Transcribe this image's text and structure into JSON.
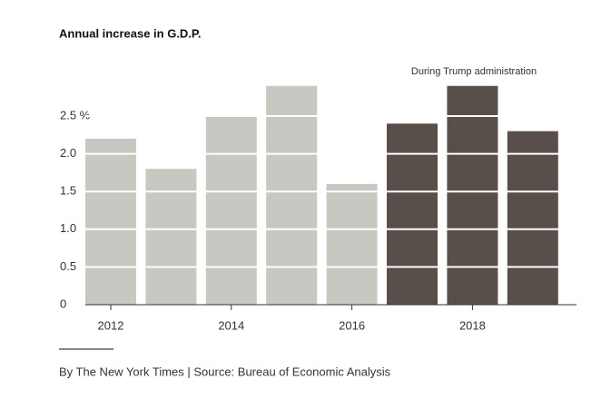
{
  "chart_data": {
    "type": "bar",
    "title": "Annual increase in G.D.P.",
    "categories": [
      "2012",
      null,
      "2014",
      null,
      "2016",
      null,
      "2018",
      null
    ],
    "values": [
      2.2,
      1.8,
      2.5,
      2.9,
      1.6,
      2.4,
      2.9,
      2.3
    ],
    "colors": [
      "#c8c7c2",
      "#c8c7c2",
      "#c8c7c2",
      "#c8c7c2",
      "#c8c7c2",
      "#594f4a",
      "#594f4a",
      "#594f4a"
    ],
    "annotation": "During Trump administration",
    "ylim": [
      0,
      3
    ],
    "yticks": [
      0,
      0.5,
      {
        "value": 1,
        "label": "1.0"
      },
      1.5,
      {
        "value": 2,
        "label": "2.0"
      },
      {
        "value": 2.5,
        "label": "2.5 %"
      }
    ],
    "grid": true,
    "source": "By The New York Times | Source: Bureau of Economic Analysis"
  }
}
